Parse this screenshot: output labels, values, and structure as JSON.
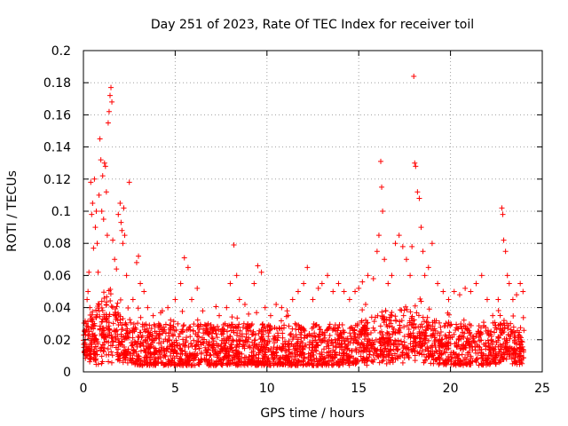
{
  "chart_data": {
    "type": "scatter",
    "title": "Day 251 of 2023, Rate Of TEC Index for receiver toil",
    "xlabel": "GPS time / hours",
    "ylabel": "ROTI / TECUs",
    "xlim": [
      0,
      25
    ],
    "ylim": [
      0,
      0.2
    ],
    "xticks": [
      0,
      5,
      10,
      15,
      20,
      25
    ],
    "yticks": [
      0,
      0.02,
      0.04,
      0.06,
      0.08,
      0.1,
      0.12,
      0.14,
      0.16,
      0.18,
      0.2
    ],
    "xtick_labels": [
      "0",
      "5",
      "10",
      "15",
      "20",
      "25"
    ],
    "ytick_labels": [
      "0",
      "0.02",
      "0.04",
      "0.06",
      "0.08",
      "0.1",
      "0.12",
      "0.14",
      "0.16",
      "0.18",
      "0.2"
    ],
    "grid": true,
    "marker": "+",
    "color": "#ff0000",
    "series": [
      {
        "name": "ROTI",
        "points": [
          [
            0.05,
            0.012
          ],
          [
            0.1,
            0.02
          ],
          [
            0.15,
            0.03
          ],
          [
            0.2,
            0.045
          ],
          [
            0.25,
            0.05
          ],
          [
            0.3,
            0.062
          ],
          [
            0.35,
            0.04
          ],
          [
            0.4,
            0.118
          ],
          [
            0.45,
            0.098
          ],
          [
            0.5,
            0.105
          ],
          [
            0.55,
            0.077
          ],
          [
            0.6,
            0.12
          ],
          [
            0.65,
            0.09
          ],
          [
            0.7,
            0.1
          ],
          [
            0.75,
            0.08
          ],
          [
            0.8,
            0.062
          ],
          [
            0.85,
            0.11
          ],
          [
            0.9,
            0.145
          ],
          [
            0.95,
            0.132
          ],
          [
            1.0,
            0.1
          ],
          [
            1.05,
            0.122
          ],
          [
            1.1,
            0.095
          ],
          [
            1.15,
            0.13
          ],
          [
            1.2,
            0.128
          ],
          [
            1.25,
            0.112
          ],
          [
            1.3,
            0.085
          ],
          [
            1.35,
            0.155
          ],
          [
            1.4,
            0.162
          ],
          [
            1.45,
            0.172
          ],
          [
            1.5,
            0.177
          ],
          [
            1.55,
            0.168
          ],
          [
            1.6,
            0.082
          ],
          [
            1.7,
            0.07
          ],
          [
            1.8,
            0.064
          ],
          [
            1.9,
            0.098
          ],
          [
            2.0,
            0.105
          ],
          [
            2.05,
            0.093
          ],
          [
            2.1,
            0.088
          ],
          [
            2.15,
            0.08
          ],
          [
            2.2,
            0.102
          ],
          [
            2.25,
            0.085
          ],
          [
            2.35,
            0.06
          ],
          [
            2.5,
            0.118
          ],
          [
            2.7,
            0.045
          ],
          [
            2.9,
            0.068
          ],
          [
            3.0,
            0.072
          ],
          [
            3.1,
            0.055
          ],
          [
            3.3,
            0.05
          ],
          [
            3.5,
            0.04
          ],
          [
            3.8,
            0.035
          ],
          [
            4.1,
            0.03
          ],
          [
            4.3,
            0.038
          ],
          [
            4.6,
            0.04
          ],
          [
            5.0,
            0.045
          ],
          [
            5.3,
            0.055
          ],
          [
            5.5,
            0.071
          ],
          [
            5.7,
            0.065
          ],
          [
            5.9,
            0.045
          ],
          [
            6.2,
            0.052
          ],
          [
            6.5,
            0.038
          ],
          [
            6.8,
            0.03
          ],
          [
            7.1,
            0.028
          ],
          [
            7.4,
            0.035
          ],
          [
            7.8,
            0.04
          ],
          [
            8.0,
            0.055
          ],
          [
            8.2,
            0.079
          ],
          [
            8.35,
            0.06
          ],
          [
            8.5,
            0.045
          ],
          [
            8.8,
            0.042
          ],
          [
            9.0,
            0.036
          ],
          [
            9.3,
            0.055
          ],
          [
            9.5,
            0.066
          ],
          [
            9.7,
            0.062
          ],
          [
            9.9,
            0.04
          ],
          [
            10.2,
            0.035
          ],
          [
            10.5,
            0.042
          ],
          [
            10.8,
            0.04
          ],
          [
            11.1,
            0.038
          ],
          [
            11.4,
            0.045
          ],
          [
            11.7,
            0.05
          ],
          [
            12.0,
            0.055
          ],
          [
            12.2,
            0.065
          ],
          [
            12.5,
            0.045
          ],
          [
            12.8,
            0.052
          ],
          [
            13.0,
            0.055
          ],
          [
            13.3,
            0.06
          ],
          [
            13.6,
            0.05
          ],
          [
            13.9,
            0.055
          ],
          [
            14.2,
            0.05
          ],
          [
            14.5,
            0.045
          ],
          [
            14.8,
            0.05
          ],
          [
            15.0,
            0.052
          ],
          [
            15.2,
            0.056
          ],
          [
            15.5,
            0.06
          ],
          [
            15.8,
            0.058
          ],
          [
            16.0,
            0.075
          ],
          [
            16.1,
            0.085
          ],
          [
            16.2,
            0.131
          ],
          [
            16.25,
            0.115
          ],
          [
            16.3,
            0.1
          ],
          [
            16.4,
            0.07
          ],
          [
            16.6,
            0.055
          ],
          [
            16.8,
            0.06
          ],
          [
            17.0,
            0.08
          ],
          [
            17.2,
            0.085
          ],
          [
            17.4,
            0.078
          ],
          [
            17.6,
            0.07
          ],
          [
            17.8,
            0.06
          ],
          [
            17.9,
            0.078
          ],
          [
            18.0,
            0.184
          ],
          [
            18.05,
            0.13
          ],
          [
            18.1,
            0.128
          ],
          [
            18.2,
            0.112
          ],
          [
            18.3,
            0.108
          ],
          [
            18.4,
            0.09
          ],
          [
            18.5,
            0.075
          ],
          [
            18.6,
            0.06
          ],
          [
            18.8,
            0.065
          ],
          [
            19.0,
            0.08
          ],
          [
            19.3,
            0.055
          ],
          [
            19.6,
            0.05
          ],
          [
            19.9,
            0.045
          ],
          [
            20.2,
            0.05
          ],
          [
            20.5,
            0.048
          ],
          [
            20.8,
            0.052
          ],
          [
            21.1,
            0.05
          ],
          [
            21.4,
            0.055
          ],
          [
            21.7,
            0.06
          ],
          [
            22.0,
            0.045
          ],
          [
            22.3,
            0.035
          ],
          [
            22.6,
            0.045
          ],
          [
            22.8,
            0.102
          ],
          [
            22.85,
            0.098
          ],
          [
            22.9,
            0.082
          ],
          [
            23.0,
            0.075
          ],
          [
            23.1,
            0.06
          ],
          [
            23.2,
            0.055
          ],
          [
            23.4,
            0.045
          ],
          [
            23.6,
            0.048
          ],
          [
            23.8,
            0.055
          ],
          [
            23.95,
            0.05
          ]
        ]
      }
    ],
    "baseline_band": {
      "description": "dense cluster of ROTI samples across the day",
      "x_range": [
        0,
        24
      ],
      "typical_low": 0.004,
      "typical_high": 0.03
    }
  }
}
